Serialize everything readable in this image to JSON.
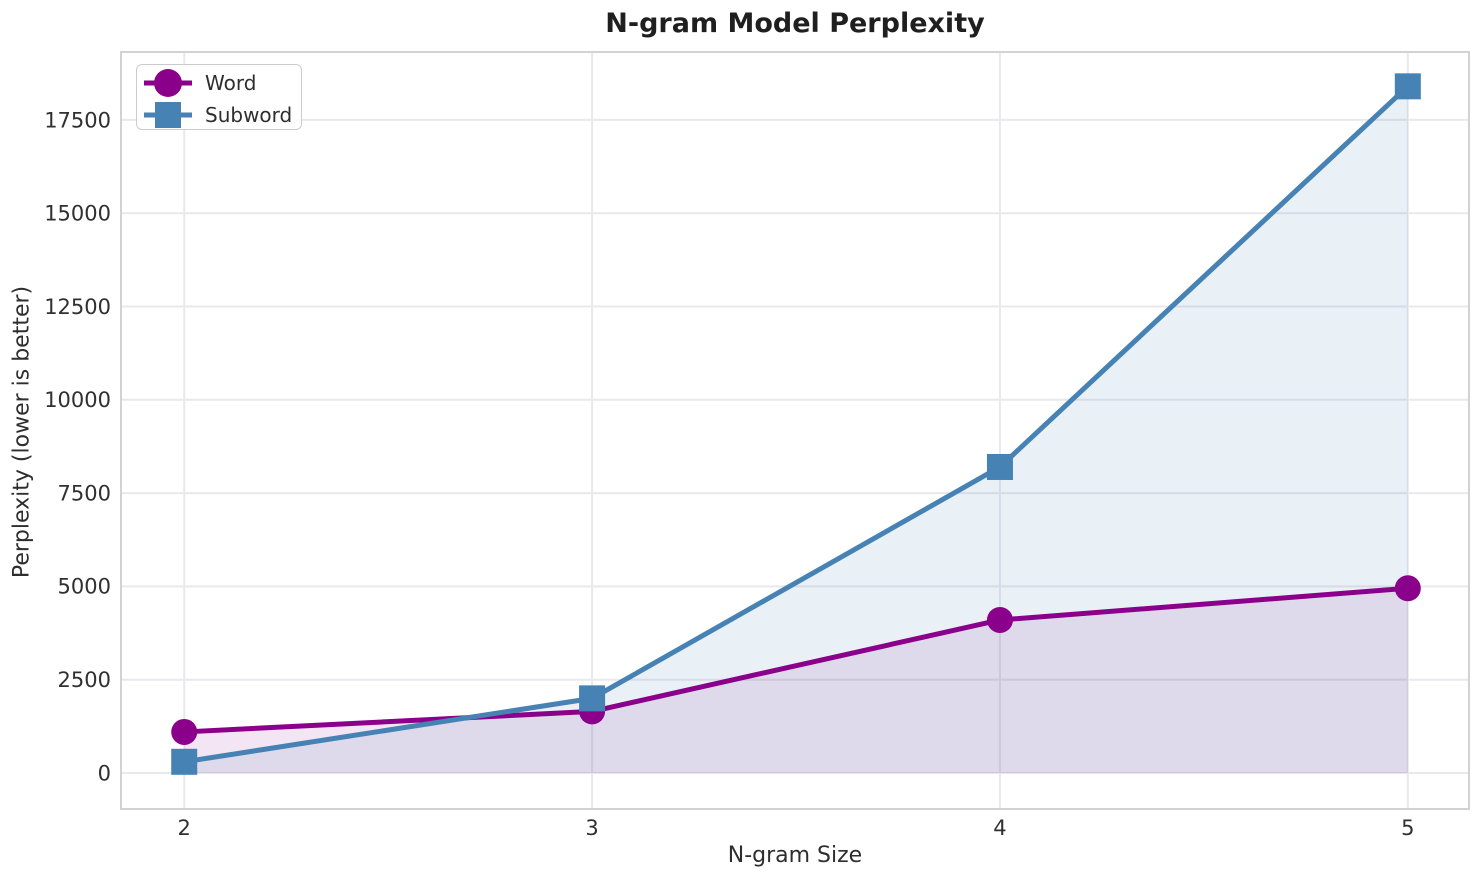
{
  "chart_data": {
    "type": "line",
    "title": "N-gram Model Perplexity",
    "xlabel": "N-gram Size",
    "ylabel": "Perplexity (lower is better)",
    "x": [
      2,
      3,
      4,
      5
    ],
    "series": [
      {
        "name": "Word",
        "color": "#8B008B",
        "marker": "circle",
        "values": [
          1100,
          1650,
          4100,
          4950
        ],
        "fill_opacity": 0.1
      },
      {
        "name": "Subword",
        "color": "#4682B4",
        "marker": "square",
        "values": [
          300,
          2000,
          8200,
          18400
        ],
        "fill_opacity": 0.12
      }
    ],
    "xticks": [
      2,
      3,
      4,
      5
    ],
    "yticks": [
      0,
      2500,
      5000,
      7500,
      10000,
      12500,
      15000,
      17500
    ],
    "xlim": [
      1.845,
      5.15
    ],
    "ylim": [
      -965,
      19320
    ],
    "grid": true,
    "legend_position": "upper-left",
    "fill_to_zero": true,
    "line_width": 5,
    "marker_size": 26,
    "background_color": "#ffffff",
    "grid_color": "#e9e9ed",
    "frame_color": "#d2d2d2",
    "text_color": "#2e2e2e"
  }
}
